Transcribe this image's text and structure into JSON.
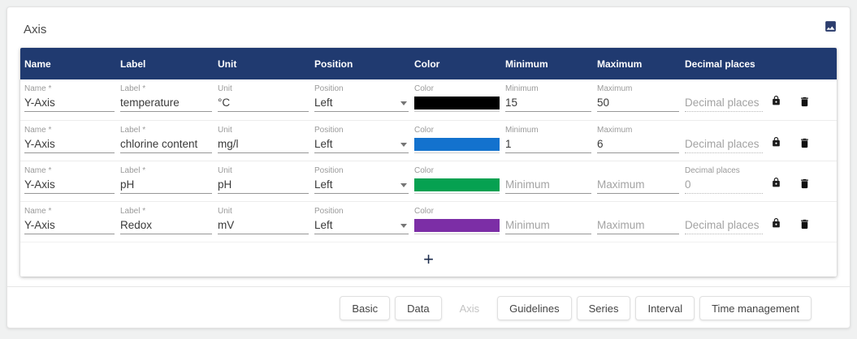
{
  "panel": {
    "title": "Axis"
  },
  "icons": {
    "export": "image-icon",
    "lock": "lock-icon",
    "delete": "trash-icon",
    "dropdown": "chevron-down-icon",
    "add": "+"
  },
  "colors": {
    "header_bg": "#203a70",
    "page_bg": "#f0f1f1"
  },
  "table": {
    "columns": [
      "Name",
      "Label",
      "Unit",
      "Position",
      "Color",
      "Minimum",
      "Maximum",
      "Decimal places"
    ],
    "field_labels": {
      "name": "Name *",
      "label": "Label *",
      "unit": "Unit",
      "position": "Position",
      "color": "Color",
      "minimum": "Minimum",
      "maximum": "Maximum",
      "decimal": "Decimal places"
    },
    "rows": [
      {
        "name": "Y-Axis",
        "label": "temperature",
        "unit": "°C",
        "position": "Left",
        "color": "#000000",
        "minimum": "15",
        "maximum": "50",
        "decimal": ""
      },
      {
        "name": "Y-Axis",
        "label": "chlorine content",
        "unit": "mg/l",
        "position": "Left",
        "color": "#1372ce",
        "minimum": "1",
        "maximum": "6",
        "decimal": ""
      },
      {
        "name": "Y-Axis",
        "label": "pH",
        "unit": "pH",
        "position": "Left",
        "color": "#06a151",
        "minimum": "",
        "maximum": "",
        "decimal": "0"
      },
      {
        "name": "Y-Axis",
        "label": "Redox",
        "unit": "mV",
        "position": "Left",
        "color": "#7c2ea6",
        "minimum": "",
        "maximum": "",
        "decimal": ""
      }
    ],
    "add_label": "+"
  },
  "footer": {
    "buttons": [
      {
        "label": "Basic",
        "disabled": false
      },
      {
        "label": "Data",
        "disabled": false
      },
      {
        "label": "Axis",
        "disabled": true
      },
      {
        "label": "Guidelines",
        "disabled": false
      },
      {
        "label": "Series",
        "disabled": false
      },
      {
        "label": "Interval",
        "disabled": false
      },
      {
        "label": "Time management",
        "disabled": false
      }
    ]
  }
}
